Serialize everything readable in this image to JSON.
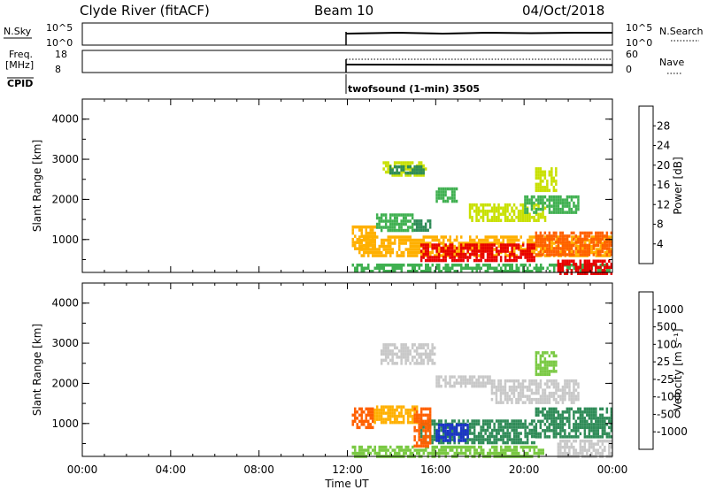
{
  "header": {
    "station": "Clyde River (fitACF)",
    "beam": "Beam 10",
    "date": "04/Oct/2018"
  },
  "panels": {
    "nsky": {
      "label": "N.Sky",
      "ticks_left": [
        "10^5",
        "10^0"
      ],
      "ticks_right": [
        "10^5",
        "10^0"
      ],
      "right_label": "N.Search"
    },
    "freq": {
      "label": "Freq.",
      "unit": "[MHz]",
      "ticks_left": [
        "18",
        "8"
      ],
      "ticks_right": [
        "60",
        "0"
      ],
      "right_label": "Nave"
    },
    "cpid": {
      "label": "CPID",
      "text": "twofsound (1-min) 3505"
    }
  },
  "colorbars": {
    "power": {
      "title": "Power [dB]",
      "labels": [
        "28",
        "24",
        "20",
        "16",
        "12",
        "8",
        "4"
      ],
      "colors": [
        "#e80000",
        "#ff6000",
        "#ffb000",
        "#c8e000",
        "#3fb050",
        "#2e8b57",
        "#2a55c0",
        "#1a1aff"
      ]
    },
    "velocity": {
      "title": "Velocity [m s⁻¹]",
      "labels": [
        "1000",
        "500",
        "100",
        "25",
        "-25",
        "-100",
        "-500",
        "-1000"
      ],
      "colors": [
        "#1a32c8",
        "#2e6ea8",
        "#2e8b57",
        "#7ac943",
        "#c8c8c8",
        "#ffb000",
        "#ff6000",
        "#ff3000",
        "#e80000"
      ]
    }
  },
  "chart_data": [
    {
      "type": "heatmap",
      "name": "power",
      "ylabel": "Slant Range [km]",
      "ylim": [
        180,
        4500
      ],
      "yticks": [
        1000,
        2000,
        3000,
        4000
      ],
      "xlim": [
        0,
        24
      ],
      "blobs": [
        {
          "x": [
            12.2,
            13.3
          ],
          "y": [
            800,
            1350
          ],
          "level": 20
        },
        {
          "x": [
            13.3,
            15.0
          ],
          "y": [
            1200,
            1650
          ],
          "level": 12
        },
        {
          "x": [
            15.0,
            15.8
          ],
          "y": [
            1250,
            1500
          ],
          "level": 8
        },
        {
          "x": [
            13.6,
            15.6
          ],
          "y": [
            2580,
            2950
          ],
          "level": 16
        },
        {
          "x": [
            13.8,
            15.5
          ],
          "y": [
            2660,
            2850
          ],
          "level": 8
        },
        {
          "x": [
            16.0,
            17.0
          ],
          "y": [
            1950,
            2300
          ],
          "level": 12
        },
        {
          "x": [
            17.5,
            21.0
          ],
          "y": [
            1500,
            1900
          ],
          "level": 16
        },
        {
          "x": [
            20.0,
            22.5
          ],
          "y": [
            1700,
            2100
          ],
          "level": 12
        },
        {
          "x": [
            12.5,
            24.0
          ],
          "y": [
            600,
            1100
          ],
          "level": 20
        },
        {
          "x": [
            15.3,
            20.5
          ],
          "y": [
            500,
            900
          ],
          "level": 28
        },
        {
          "x": [
            20.5,
            24.0
          ],
          "y": [
            650,
            1200
          ],
          "level": 24
        },
        {
          "x": [
            12.2,
            24.0
          ],
          "y": [
            180,
            400
          ],
          "level": 12
        },
        {
          "x": [
            21.5,
            24.0
          ],
          "y": [
            180,
            500
          ],
          "level": 28
        },
        {
          "x": [
            20.5,
            21.5
          ],
          "y": [
            2200,
            2800
          ],
          "level": 16
        }
      ]
    },
    {
      "type": "heatmap",
      "name": "velocity",
      "ylabel": "Slant Range [km]",
      "xlabel": "Time UT",
      "xticks": [
        "00:00",
        "04:00",
        "08:00",
        "12:00",
        "16:00",
        "20:00",
        "00:00"
      ],
      "ylim": [
        180,
        4500
      ],
      "yticks": [
        1000,
        2000,
        3000,
        4000
      ],
      "xlim": [
        0,
        24
      ],
      "blobs": [
        {
          "x": [
            12.2,
            13.2
          ],
          "y": [
            900,
            1400
          ],
          "level": -500
        },
        {
          "x": [
            13.2,
            15.2
          ],
          "y": [
            1050,
            1450
          ],
          "level": -100
        },
        {
          "x": [
            13.5,
            16.0
          ],
          "y": [
            2500,
            3000
          ],
          "level": 0
        },
        {
          "x": [
            16.0,
            18.5
          ],
          "y": [
            1900,
            2200
          ],
          "level": 0
        },
        {
          "x": [
            18.5,
            22.5
          ],
          "y": [
            1500,
            2100
          ],
          "level": 0
        },
        {
          "x": [
            15.3,
            20.5
          ],
          "y": [
            500,
            1100
          ],
          "level": 100
        },
        {
          "x": [
            16.0,
            17.5
          ],
          "y": [
            600,
            1000
          ],
          "level": 1000
        },
        {
          "x": [
            20.5,
            24.0
          ],
          "y": [
            650,
            1400
          ],
          "level": 100
        },
        {
          "x": [
            21.5,
            24.0
          ],
          "y": [
            180,
            600
          ],
          "level": 0
        },
        {
          "x": [
            12.2,
            21.0
          ],
          "y": [
            180,
            450
          ],
          "level": 25
        },
        {
          "x": [
            15.0,
            15.8
          ],
          "y": [
            400,
            1400
          ],
          "level": -500
        },
        {
          "x": [
            20.5,
            21.5
          ],
          "y": [
            2200,
            2800
          ],
          "level": 25
        }
      ]
    }
  ]
}
